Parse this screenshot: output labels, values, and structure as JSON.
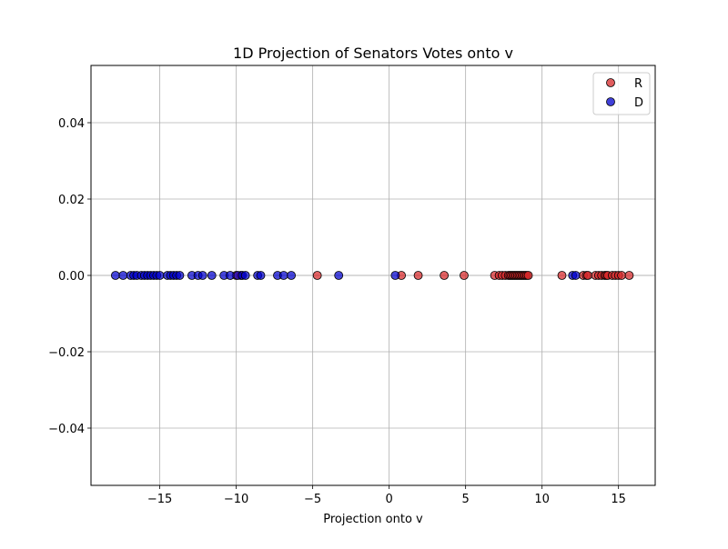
{
  "chart_data": {
    "type": "scatter",
    "title": "1D Projection of Senators Votes onto v",
    "xlabel": "Projection onto v",
    "ylabel": "",
    "xlim": [
      -19.5,
      17.4
    ],
    "ylim": [
      -0.055,
      0.055
    ],
    "xticks": [
      -15,
      -10,
      -5,
      0,
      5,
      10,
      15
    ],
    "yticks": [
      -0.04,
      -0.02,
      0.0,
      0.02,
      0.04
    ],
    "xtick_labels": [
      "−15",
      "−10",
      "−5",
      "0",
      "5",
      "10",
      "15"
    ],
    "ytick_labels": [
      "−0.04",
      "−0.02",
      "0.00",
      "0.02",
      "0.04"
    ],
    "grid": true,
    "legend_position": "top-right",
    "series": [
      {
        "name": "R",
        "color": "#d62728",
        "x": [
          -4.7,
          0.8,
          1.9,
          3.6,
          4.9,
          6.9,
          7.2,
          7.4,
          7.6,
          7.8,
          7.9,
          8.0,
          8.1,
          8.2,
          8.3,
          8.4,
          8.5,
          8.6,
          8.7,
          8.8,
          8.9,
          9.0,
          9.1,
          11.3,
          12.7,
          12.9,
          13.0,
          13.5,
          13.7,
          13.9,
          14.1,
          14.2,
          14.3,
          14.6,
          14.8,
          15.0,
          15.2,
          15.7,
          -9.7,
          -10.0
        ],
        "y": [
          0,
          0,
          0,
          0,
          0,
          0,
          0,
          0,
          0,
          0,
          0,
          0,
          0,
          0,
          0,
          0,
          0,
          0,
          0,
          0,
          0,
          0,
          0,
          0,
          0,
          0,
          0,
          0,
          0,
          0,
          0,
          0,
          0,
          0,
          0,
          0,
          0,
          0,
          0,
          0
        ]
      },
      {
        "name": "D",
        "color": "#0000cc",
        "x": [
          -17.9,
          -17.4,
          -16.9,
          -16.7,
          -16.5,
          -16.2,
          -16.0,
          -15.8,
          -15.6,
          -15.4,
          -15.2,
          -15.0,
          -14.5,
          -14.3,
          -14.1,
          -13.9,
          -13.7,
          -12.9,
          -12.5,
          -12.2,
          -11.6,
          -10.8,
          -10.4,
          -9.9,
          -9.6,
          -9.4,
          -8.6,
          -8.4,
          -7.3,
          -6.9,
          -6.4,
          -3.3,
          0.4,
          12.0,
          12.2
        ]
      }
    ]
  }
}
